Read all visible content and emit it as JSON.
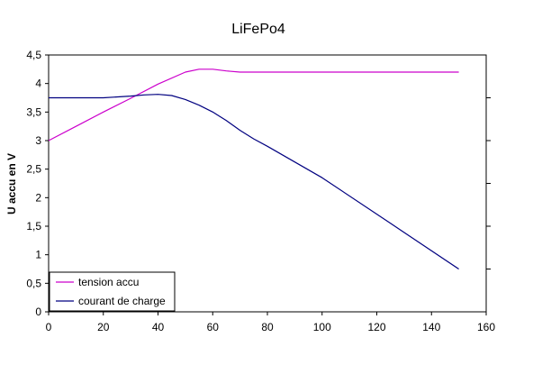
{
  "chart_data": {
    "type": "line",
    "title": "LiFePo4",
    "xlabel": "",
    "ylabel": "U accu en V",
    "xlim": [
      0,
      160
    ],
    "ylim": [
      0,
      4.5
    ],
    "x_ticks": [
      "0",
      "20",
      "40",
      "60",
      "80",
      "100",
      "120",
      "140",
      "160"
    ],
    "y_ticks": [
      "0",
      "0,5",
      "1",
      "1,5",
      "2",
      "2,5",
      "3",
      "3,5",
      "4",
      "4,5"
    ],
    "grid": false,
    "legend_position": "bottom-left",
    "series": [
      {
        "name": "tension accu",
        "color": "#cc00cc",
        "x": [
          0,
          10,
          20,
          30,
          40,
          50,
          55,
          60,
          65,
          70,
          75,
          100,
          125,
          150
        ],
        "y": [
          3.0,
          3.25,
          3.5,
          3.74,
          3.99,
          4.2,
          4.25,
          4.25,
          4.22,
          4.2,
          4.2,
          4.2,
          4.2,
          4.2
        ]
      },
      {
        "name": "courant de charge",
        "color": "#000080",
        "x": [
          0,
          10,
          20,
          30,
          35,
          40,
          45,
          50,
          55,
          60,
          65,
          70,
          75,
          80,
          100,
          125,
          150
        ],
        "y": [
          3.75,
          3.75,
          3.75,
          3.78,
          3.8,
          3.81,
          3.79,
          3.72,
          3.62,
          3.5,
          3.35,
          3.18,
          3.03,
          2.9,
          2.35,
          1.55,
          0.75
        ]
      }
    ]
  }
}
